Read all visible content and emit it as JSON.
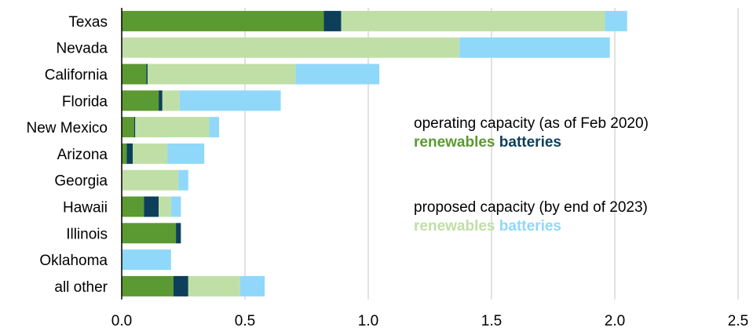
{
  "chart_data": {
    "type": "bar",
    "orientation": "horizontal",
    "stacked": true,
    "categories": [
      "Texas",
      "Nevada",
      "California",
      "Florida",
      "New Mexico",
      "Arizona",
      "Georgia",
      "Hawaii",
      "Illinois",
      "Oklahoma",
      "all other"
    ],
    "series": [
      {
        "group": "operating",
        "type": "renewables",
        "color": "#5b9a32",
        "values": [
          0.82,
          0.0,
          0.1,
          0.15,
          0.05,
          0.02,
          0.0,
          0.09,
          0.22,
          0.0,
          0.21
        ]
      },
      {
        "group": "operating",
        "type": "batteries",
        "color": "#0e3f5a",
        "values": [
          0.07,
          0.0,
          0.005,
          0.015,
          0.005,
          0.025,
          0.0,
          0.06,
          0.02,
          0.0,
          0.06
        ]
      },
      {
        "group": "proposed",
        "type": "renewables",
        "color": "#c0dfa6",
        "values": [
          1.07,
          1.37,
          0.6,
          0.07,
          0.3,
          0.14,
          0.23,
          0.05,
          0.0,
          0.0,
          0.21
        ]
      },
      {
        "group": "proposed",
        "type": "batteries",
        "color": "#8fd8fa",
        "values": [
          0.09,
          0.61,
          0.34,
          0.41,
          0.04,
          0.15,
          0.04,
          0.04,
          0.0,
          0.2,
          0.1
        ]
      }
    ],
    "xlim": [
      0,
      2.5
    ],
    "xticks": [
      "0.0",
      "0.5",
      "1.0",
      "1.5",
      "2.0",
      "2.5"
    ],
    "grid": "vertical",
    "title": "",
    "xlabel": "",
    "ylabel": ""
  },
  "legend": {
    "operating_title": "operating capacity (as of Feb 2020)",
    "operating_renewables": "renewables",
    "operating_batteries": "batteries",
    "proposed_title": "proposed capacity (by end of 2023)",
    "proposed_renewables": "renewables",
    "proposed_batteries": "batteries"
  }
}
